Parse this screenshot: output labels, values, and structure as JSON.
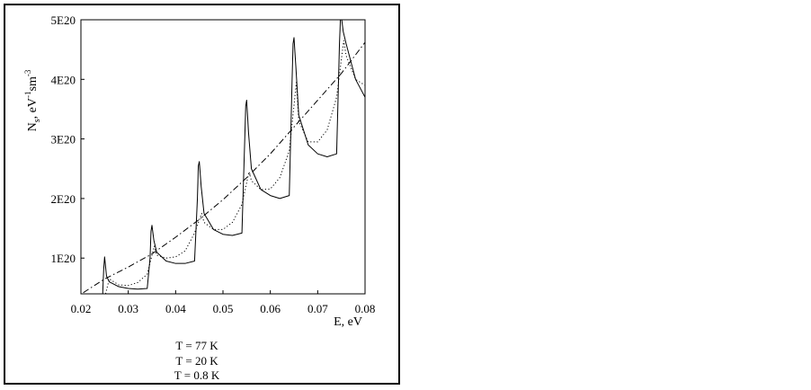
{
  "chart_data": {
    "type": "line",
    "xlabel": "E, eV",
    "ylabel_main": "N",
    "ylabel_sub": "s",
    "ylabel_rest": ", eV",
    "ylabel_sup1": "-1",
    "ylabel_mid": "sm",
    "ylabel_sup2": "-3",
    "xlim": [
      0.02,
      0.08
    ],
    "ylim": [
      4e+19,
      5e+20
    ],
    "x_ticks": [
      {
        "value": 0.02,
        "label": "0.02"
      },
      {
        "value": 0.03,
        "label": "0.03"
      },
      {
        "value": 0.04,
        "label": "0.04"
      },
      {
        "value": 0.05,
        "label": "0.05"
      },
      {
        "value": 0.06,
        "label": "0.06"
      },
      {
        "value": 0.07,
        "label": "0.07"
      },
      {
        "value": 0.08,
        "label": "0.08"
      }
    ],
    "y_ticks": [
      {
        "value": 1e+20,
        "label": "1E20"
      },
      {
        "value": 2e+20,
        "label": "2E20"
      },
      {
        "value": 3e+20,
        "label": "3E20"
      },
      {
        "value": 4e+20,
        "label": "4E20"
      },
      {
        "value": 5e+20,
        "label": "5E20"
      }
    ],
    "legend": [
      "T = 77 K",
      "T = 20 K",
      "T = 0.8 K"
    ],
    "series": [
      {
        "line_style": "dashdot",
        "x": [
          0.0205,
          0.025,
          0.03,
          0.035,
          0.04,
          0.045,
          0.05,
          0.055,
          0.06,
          0.065,
          0.07,
          0.075,
          0.08
        ],
        "y": [
          4.2e+19,
          6.5e+19,
          8.5e+19,
          1.07e+20,
          1.35e+20,
          1.65e+20,
          1.98e+20,
          2.35e+20,
          2.75e+20,
          3.2e+20,
          3.65e+20,
          4.1e+20,
          4.62e+20
        ]
      },
      {
        "line_style": "dotted",
        "x": [
          0.0252,
          0.026,
          0.028,
          0.03,
          0.032,
          0.034,
          0.0355,
          0.036,
          0.038,
          0.04,
          0.042,
          0.044,
          0.0455,
          0.046,
          0.048,
          0.05,
          0.052,
          0.054,
          0.0555,
          0.056,
          0.058,
          0.06,
          0.062,
          0.064,
          0.0655,
          0.066,
          0.068,
          0.07,
          0.072,
          0.074,
          0.0755,
          0.076,
          0.078,
          0.08
        ],
        "y": [
          4e+19,
          6.5e+19,
          5.5e+19,
          5.4e+19,
          5.9e+19,
          7.3e+19,
          1.2e+20,
          1.05e+20,
          1e+20,
          1.02e+20,
          1.12e+20,
          1.42e+20,
          1.75e+20,
          1.6e+20,
          1.48e+20,
          1.48e+20,
          1.6e+20,
          1.9e+20,
          2.45e+20,
          2.3e+20,
          2.15e+20,
          2.16e+20,
          2.35e+20,
          2.8e+20,
          3.95e+20,
          3.3e+20,
          2.95e+20,
          2.95e+20,
          3.15e+20,
          3.7e+20,
          4.65e+20,
          4.4e+20,
          4e+20,
          3.9e+20
        ]
      },
      {
        "line_style": "solid",
        "x": [
          0.0246,
          0.0248,
          0.025,
          0.0254,
          0.026,
          0.028,
          0.03,
          0.032,
          0.034,
          0.0346,
          0.0348,
          0.035,
          0.0354,
          0.036,
          0.038,
          0.04,
          0.042,
          0.044,
          0.0446,
          0.0448,
          0.045,
          0.0454,
          0.046,
          0.048,
          0.05,
          0.052,
          0.054,
          0.0546,
          0.0548,
          0.055,
          0.0554,
          0.056,
          0.058,
          0.06,
          0.062,
          0.064,
          0.0646,
          0.0648,
          0.065,
          0.0654,
          0.066,
          0.068,
          0.07,
          0.072,
          0.074,
          0.0746,
          0.0748,
          0.075,
          0.0754,
          0.076,
          0.078,
          0.08
        ],
        "y": [
          4e+19,
          8e+19,
          1.02e+20,
          7e+19,
          6e+19,
          5.2e+19,
          4.9e+19,
          4.8e+19,
          4.9e+19,
          1e+20,
          1.45e+20,
          1.55e+20,
          1.3e+20,
          1.1e+20,
          9.5e+19,
          9.1e+19,
          9.1e+19,
          9.5e+19,
          2e+20,
          2.55e+20,
          2.62e+20,
          2.2e+20,
          1.75e+20,
          1.48e+20,
          1.4e+20,
          1.38e+20,
          1.42e+20,
          3e+20,
          3.55e+20,
          3.65e+20,
          3.1e+20,
          2.5e+20,
          2.15e+20,
          2.05e+20,
          2e+20,
          2.05e+20,
          4e+20,
          4.6e+20,
          4.7e+20,
          4.2e+20,
          3.4e+20,
          2.9e+20,
          2.75e+20,
          2.7e+20,
          2.75e+20,
          4.6e+20,
          5e+20,
          5.05e+20,
          4.8e+20,
          4.6e+20,
          4e+20,
          3.7e+20
        ]
      }
    ]
  }
}
